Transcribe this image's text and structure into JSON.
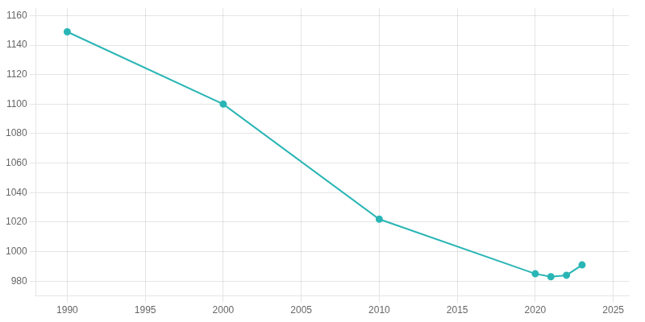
{
  "chart_data": {
    "type": "line",
    "x": [
      1990,
      2000,
      2010,
      2020,
      2021,
      2022,
      2023
    ],
    "values": [
      1149,
      1100,
      1022,
      985,
      983,
      984,
      991
    ],
    "color": "#2ab5b5",
    "marker": "circle",
    "xlim": [
      1988,
      2026
    ],
    "ylim": [
      970,
      1165
    ],
    "xticks": [
      1990,
      1995,
      2000,
      2005,
      2010,
      2015,
      2020,
      2025
    ],
    "yticks": [
      980,
      1000,
      1020,
      1040,
      1060,
      1080,
      1100,
      1120,
      1140,
      1160
    ],
    "grid": true
  }
}
